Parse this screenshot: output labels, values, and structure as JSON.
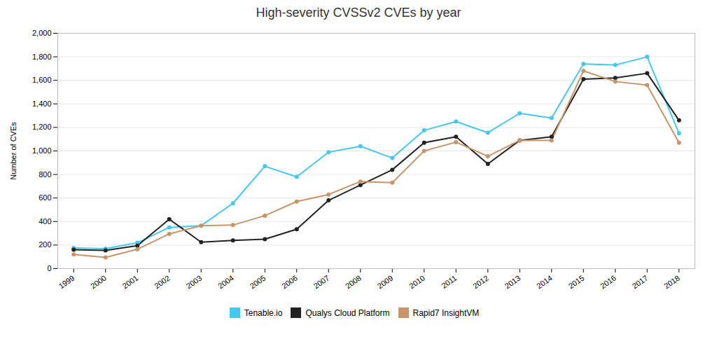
{
  "chart_data": {
    "type": "line",
    "title": "High-severity CVSSv2 CVEs by year",
    "ylabel": "Number of CVEs",
    "x": [
      1999,
      2000,
      2001,
      2002,
      2003,
      2004,
      2005,
      2006,
      2007,
      2008,
      2009,
      2010,
      2011,
      2012,
      2013,
      2014,
      2015,
      2016,
      2017,
      2018
    ],
    "series": [
      {
        "name": "Tenable.io",
        "color": "#45C8F0",
        "values": [
          175,
          170,
          220,
          350,
          365,
          555,
          870,
          780,
          990,
          1040,
          940,
          1175,
          1250,
          1155,
          1320,
          1280,
          1740,
          1730,
          1800,
          1150
        ]
      },
      {
        "name": "Qualys Cloud Platform",
        "color": "#222222",
        "values": [
          160,
          155,
          195,
          420,
          225,
          240,
          250,
          335,
          580,
          710,
          840,
          1070,
          1120,
          890,
          1090,
          1120,
          1610,
          1620,
          1660,
          1260
        ]
      },
      {
        "name": "Rapid7 InsightVM",
        "color": "#C8956A",
        "values": [
          120,
          95,
          165,
          295,
          365,
          370,
          450,
          570,
          630,
          740,
          730,
          1000,
          1075,
          955,
          1090,
          1090,
          1680,
          1590,
          1560,
          1070
        ]
      }
    ],
    "xlim": [
      1998.5,
      2018.5
    ],
    "xticks": [
      1999,
      2000,
      2001,
      2002,
      2003,
      2004,
      2005,
      2006,
      2007,
      2008,
      2009,
      2010,
      2011,
      2012,
      2013,
      2014,
      2015,
      2016,
      2017,
      2018
    ],
    "ylim": [
      0,
      2000
    ],
    "yticks": [
      0,
      200,
      400,
      600,
      800,
      {
        "value": 1000,
        "label": "1,000"
      },
      {
        "value": 1200,
        "label": "1,200"
      },
      {
        "value": 1400,
        "label": "1,400"
      },
      {
        "value": 1600,
        "label": "1,600"
      },
      {
        "value": 1800,
        "label": "1,800"
      },
      {
        "value": 2000,
        "label": "2,000"
      }
    ],
    "grid": true,
    "legend": "bottom",
    "marker": "circle"
  }
}
